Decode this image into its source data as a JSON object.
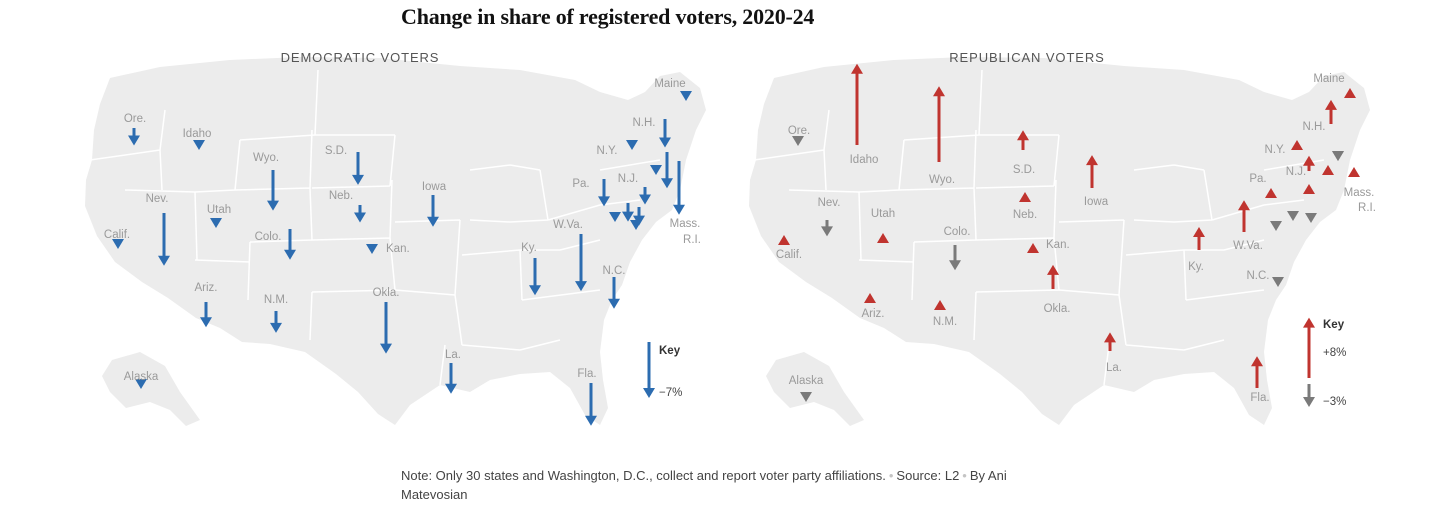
{
  "title": "Change in share of registered voters, 2020-24",
  "colors": {
    "democratic": "#2c6cb0",
    "republican_increase": "#c0342f",
    "republican_decrease": "#7a7a7a",
    "land": "#ececec",
    "borders": "#ffffff",
    "state_labels": "#9a9a9a"
  },
  "left_map": {
    "title": "DEMOCRATIC VOTERS",
    "key": {
      "title": "Key",
      "value": "−7%"
    },
    "states": [
      {
        "name": "Ore.",
        "change": -1.5
      },
      {
        "name": "Idaho",
        "change": -1
      },
      {
        "name": "Wyo.",
        "change": -3.6
      },
      {
        "name": "S.D.",
        "change": -2.9
      },
      {
        "name": "Nev.",
        "change": -4.7
      },
      {
        "name": "Utah",
        "change": -0.8
      },
      {
        "name": "Colo.",
        "change": -2.7
      },
      {
        "name": "Neb.",
        "change": -1.5
      },
      {
        "name": "Kan.",
        "change": -0.8
      },
      {
        "name": "Iowa",
        "change": -2.8
      },
      {
        "name": "Calif.",
        "change": -0.8
      },
      {
        "name": "Ariz.",
        "change": -2.2
      },
      {
        "name": "N.M.",
        "change": -1.9
      },
      {
        "name": "Okla.",
        "change": -4.6
      },
      {
        "name": "Ky.",
        "change": -3.3
      },
      {
        "name": "W.Va.",
        "change": -5.1
      },
      {
        "name": "N.C.",
        "change": -2.8
      },
      {
        "name": "La.",
        "change": -2.7
      },
      {
        "name": "Fla.",
        "change": -3.8
      },
      {
        "name": "Alaska",
        "change": -0.8
      },
      {
        "name": "Maine",
        "change": -1
      },
      {
        "name": "N.H.",
        "change": -2.5
      },
      {
        "name": "N.Y.",
        "change": -1
      },
      {
        "name": "Pa.",
        "change": -2.4
      },
      {
        "name": "N.J.",
        "change": -1.6
      },
      {
        "name": "Mass.",
        "change": -3.2
      },
      {
        "name": "R.I.",
        "change": -4.8
      }
    ],
    "unlabeled_markers": [
      {
        "change": -0.8
      },
      {
        "change": -1.5
      },
      {
        "change": -1.6
      },
      {
        "change": -0.9
      },
      {
        "change": -0.8
      }
    ]
  },
  "right_map": {
    "title": "REPUBLICAN VOTERS",
    "key": {
      "title": "Key",
      "value_up": "+8%",
      "value_down": "−3%"
    },
    "states": [
      {
        "name": "Ore.",
        "change": -0.8
      },
      {
        "name": "Idaho",
        "change": 7.3
      },
      {
        "name": "Wyo.",
        "change": 6.8
      },
      {
        "name": "S.D.",
        "change": 1.7
      },
      {
        "name": "Nev.",
        "change": -1.4
      },
      {
        "name": "Utah",
        "change": 0.8
      },
      {
        "name": "Colo.",
        "change": -2.2
      },
      {
        "name": "Neb.",
        "change": 0.8
      },
      {
        "name": "Kan.",
        "change": 0.8
      },
      {
        "name": "Iowa",
        "change": 2.9
      },
      {
        "name": "Calif.",
        "change": 0.8
      },
      {
        "name": "Ariz.",
        "change": 0.8
      },
      {
        "name": "N.M.",
        "change": 0.8
      },
      {
        "name": "Okla.",
        "change": 2.1
      },
      {
        "name": "Ky.",
        "change": 2.0
      },
      {
        "name": "W.Va.",
        "change": 2.8
      },
      {
        "name": "N.C.",
        "change": -0.8
      },
      {
        "name": "La.",
        "change": 1.6
      },
      {
        "name": "Fla.",
        "change": 2.8
      },
      {
        "name": "Alaska",
        "change": -0.8
      },
      {
        "name": "Maine",
        "change": 0.8
      },
      {
        "name": "N.H.",
        "change": 2.1
      },
      {
        "name": "N.Y.",
        "change": 0.8
      },
      {
        "name": "Pa.",
        "change": 0.8
      },
      {
        "name": "N.J.",
        "change": 0.8
      },
      {
        "name": "Mass.",
        "change": 0.8
      },
      {
        "name": "R.I.",
        "change": -0.8
      }
    ],
    "unlabeled_markers": [
      {
        "change": 0.8
      },
      {
        "change": 1.3
      },
      {
        "change": -0.8
      },
      {
        "change": -0.8
      },
      {
        "change": -0.8
      },
      {
        "change": -0.8
      }
    ]
  },
  "note": {
    "text": "Note: Only 30 states and Washington, D.C., collect and report voter party affiliations.",
    "source": "Source: L2",
    "byline": "By Ani Matevosian"
  }
}
